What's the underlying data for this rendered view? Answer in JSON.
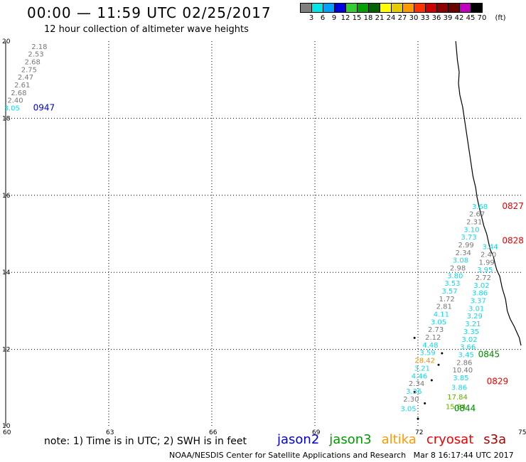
{
  "title": "00:00 — 11:59 UTC 02/25/2017",
  "subtitle": "12 hour collection of altimeter wave heights",
  "legend": {
    "unit": "(ft)",
    "labels": [
      "3",
      "6",
      "9",
      "12",
      "15",
      "18",
      "21",
      "24",
      "27",
      "30",
      "33",
      "36",
      "39",
      "42",
      "45",
      "70"
    ],
    "colors": [
      "#7f7f7f",
      "#00e5e5",
      "#00a0ff",
      "#0000e0",
      "#33cc33",
      "#00a000",
      "#006400",
      "#ffff00",
      "#e5cc00",
      "#ff9900",
      "#ff3300",
      "#cc0000",
      "#8b0000",
      "#6b0000",
      "#c000c0",
      "#000000"
    ]
  },
  "axes": {
    "lat_ticks": [
      "10",
      "12",
      "14",
      "16",
      "18",
      "20"
    ],
    "lon_ticks": [
      "60",
      "63",
      "66",
      "69",
      "72",
      "75"
    ]
  },
  "colors": {
    "gray": "#777777",
    "cyan": "#10d8e8",
    "green": "#008800",
    "orange": "#f09000",
    "red": "#ee0000",
    "blue": "#0000cc",
    "yellowgreen": "#66aa00"
  },
  "tracks": [
    {
      "time": "0947",
      "time_color": "blue",
      "obs": [
        {
          "lat": 19.8,
          "lon": 60.98,
          "v": "2.18",
          "c": "gray"
        },
        {
          "lat": 19.6,
          "lon": 60.88,
          "v": "2.53",
          "c": "gray"
        },
        {
          "lat": 19.4,
          "lon": 60.78,
          "v": "2.68",
          "c": "gray"
        },
        {
          "lat": 19.2,
          "lon": 60.68,
          "v": "2.75",
          "c": "gray"
        },
        {
          "lat": 19.0,
          "lon": 60.58,
          "v": "2.47",
          "c": "gray"
        },
        {
          "lat": 18.8,
          "lon": 60.48,
          "v": "2.61",
          "c": "gray"
        },
        {
          "lat": 18.6,
          "lon": 60.38,
          "v": "2.68",
          "c": "gray"
        },
        {
          "lat": 18.4,
          "lon": 60.28,
          "v": "2.40",
          "c": "gray"
        },
        {
          "lat": 18.2,
          "lon": 60.18,
          "v": "3.05",
          "c": "cyan"
        }
      ]
    },
    {
      "time": "0827",
      "time_color": "red",
      "obs": [
        {
          "lat": 15.65,
          "lon": 73.8,
          "v": "3.68",
          "c": "cyan"
        },
        {
          "lat": 15.45,
          "lon": 73.72,
          "v": "2.67",
          "c": "gray"
        },
        {
          "lat": 15.25,
          "lon": 73.64,
          "v": "2.31",
          "c": "gray"
        },
        {
          "lat": 15.05,
          "lon": 73.56,
          "v": "3.10",
          "c": "cyan"
        },
        {
          "lat": 14.85,
          "lon": 73.48,
          "v": "3.73",
          "c": "cyan"
        },
        {
          "lat": 14.65,
          "lon": 73.4,
          "v": "2.99",
          "c": "gray"
        },
        {
          "lat": 14.45,
          "lon": 73.32,
          "v": "2.34",
          "c": "gray"
        },
        {
          "lat": 14.25,
          "lon": 73.24,
          "v": "3.08",
          "c": "cyan"
        },
        {
          "lat": 14.05,
          "lon": 73.16,
          "v": "2.98",
          "c": "gray"
        },
        {
          "lat": 13.85,
          "lon": 73.08,
          "v": "3.80",
          "c": "cyan"
        },
        {
          "lat": 13.65,
          "lon": 73.0,
          "v": "3.53",
          "c": "cyan"
        },
        {
          "lat": 13.45,
          "lon": 72.92,
          "v": "3.57",
          "c": "cyan"
        },
        {
          "lat": 13.25,
          "lon": 72.84,
          "v": "1.72",
          "c": "gray"
        },
        {
          "lat": 13.05,
          "lon": 72.76,
          "v": "2.81",
          "c": "gray"
        },
        {
          "lat": 12.85,
          "lon": 72.68,
          "v": "4.11",
          "c": "cyan"
        },
        {
          "lat": 12.65,
          "lon": 72.6,
          "v": "3.05",
          "c": "cyan"
        },
        {
          "lat": 12.45,
          "lon": 72.52,
          "v": "2.73",
          "c": "gray"
        },
        {
          "lat": 12.25,
          "lon": 72.44,
          "v": "2.12",
          "c": "gray"
        },
        {
          "lat": 12.05,
          "lon": 72.36,
          "v": "4.48",
          "c": "cyan"
        },
        {
          "lat": 11.85,
          "lon": 72.28,
          "v": "3.59",
          "c": "cyan"
        },
        {
          "lat": 11.65,
          "lon": 72.2,
          "v": "28.42",
          "c": "orange"
        },
        {
          "lat": 11.45,
          "lon": 72.12,
          "v": "3.21",
          "c": "cyan"
        },
        {
          "lat": 11.25,
          "lon": 72.04,
          "v": "4.46",
          "c": "cyan"
        },
        {
          "lat": 11.05,
          "lon": 71.96,
          "v": "2.34",
          "c": "gray"
        },
        {
          "lat": 10.85,
          "lon": 71.88,
          "v": "3.36",
          "c": "cyan"
        },
        {
          "lat": 10.65,
          "lon": 71.8,
          "v": "2.30",
          "c": "gray"
        },
        {
          "lat": 10.4,
          "lon": 71.72,
          "v": "3.05",
          "c": "cyan"
        }
      ]
    },
    {
      "time": "0828",
      "time_color": "red",
      "obs": [
        {
          "lat": 14.6,
          "lon": 74.1,
          "v": "3.44",
          "c": "cyan"
        },
        {
          "lat": 14.4,
          "lon": 74.05,
          "v": "2.40",
          "c": "gray"
        },
        {
          "lat": 14.2,
          "lon": 74.0,
          "v": "1.99",
          "c": "gray"
        },
        {
          "lat": 14.0,
          "lon": 73.95,
          "v": "3.95",
          "c": "cyan"
        },
        {
          "lat": 13.8,
          "lon": 73.9,
          "v": "2.72",
          "c": "gray"
        },
        {
          "lat": 13.6,
          "lon": 73.85,
          "v": "3.02",
          "c": "cyan"
        },
        {
          "lat": 13.4,
          "lon": 73.8,
          "v": "3.86",
          "c": "cyan"
        },
        {
          "lat": 13.2,
          "lon": 73.75,
          "v": "3.37",
          "c": "cyan"
        },
        {
          "lat": 13.0,
          "lon": 73.7,
          "v": "3.01",
          "c": "cyan"
        },
        {
          "lat": 12.8,
          "lon": 73.65,
          "v": "3.29",
          "c": "cyan"
        },
        {
          "lat": 12.6,
          "lon": 73.6,
          "v": "3.21",
          "c": "cyan"
        },
        {
          "lat": 12.4,
          "lon": 73.55,
          "v": "3.35",
          "c": "cyan"
        },
        {
          "lat": 12.2,
          "lon": 73.5,
          "v": "3.02",
          "c": "cyan"
        },
        {
          "lat": 12.0,
          "lon": 73.45,
          "v": "3.66",
          "c": "cyan"
        }
      ]
    },
    {
      "time": "0845",
      "time_color": "green",
      "obs": [
        {
          "lat": 11.8,
          "lon": 73.4,
          "v": "3.45",
          "c": "cyan"
        },
        {
          "lat": 11.6,
          "lon": 73.35,
          "v": "2.86",
          "c": "gray"
        },
        {
          "lat": 11.4,
          "lon": 73.3,
          "v": "10.40",
          "c": "gray"
        },
        {
          "lat": 11.2,
          "lon": 73.25,
          "v": "3.85",
          "c": "cyan"
        },
        {
          "lat": 10.95,
          "lon": 73.2,
          "v": "3.86",
          "c": "cyan"
        },
        {
          "lat": 10.7,
          "lon": 73.15,
          "v": "17.84",
          "c": "yellowgreen"
        },
        {
          "lat": 10.45,
          "lon": 73.1,
          "v": "15.84",
          "c": "yellowgreen"
        }
      ]
    },
    {
      "time": "0829",
      "time_color": "red",
      "obs": []
    },
    {
      "time": "0844",
      "time_color": "green",
      "obs": []
    }
  ],
  "track_time_positions": [
    {
      "time": "0947",
      "lat": 18.2,
      "lon": 60.8
    },
    {
      "time": "0827",
      "lat": 15.65,
      "lon": 74.45
    },
    {
      "time": "0828",
      "lat": 14.75,
      "lon": 74.45
    },
    {
      "time": "0845",
      "lat": 11.8,
      "lon": 73.75
    },
    {
      "time": "0829",
      "lat": 11.1,
      "lon": 74.0
    },
    {
      "time": "0844",
      "lat": 10.4,
      "lon": 73.05
    }
  ],
  "footer": {
    "note": "note: 1) Time is in UTC; 2) SWH is in feet",
    "satellites": [
      {
        "name": "jason2",
        "color": "#0000dd"
      },
      {
        "name": "jason3",
        "color": "#009900"
      },
      {
        "name": "altika",
        "color": "#ff9900"
      },
      {
        "name": "cryosat",
        "color": "#ee0000"
      },
      {
        "name": "s3a",
        "color": "#aa0000"
      }
    ],
    "credit": "NOAA/NESDIS Center for Satellite Applications and Research",
    "timestamp": "Mar  8 16:17:44 UTC 2017"
  }
}
